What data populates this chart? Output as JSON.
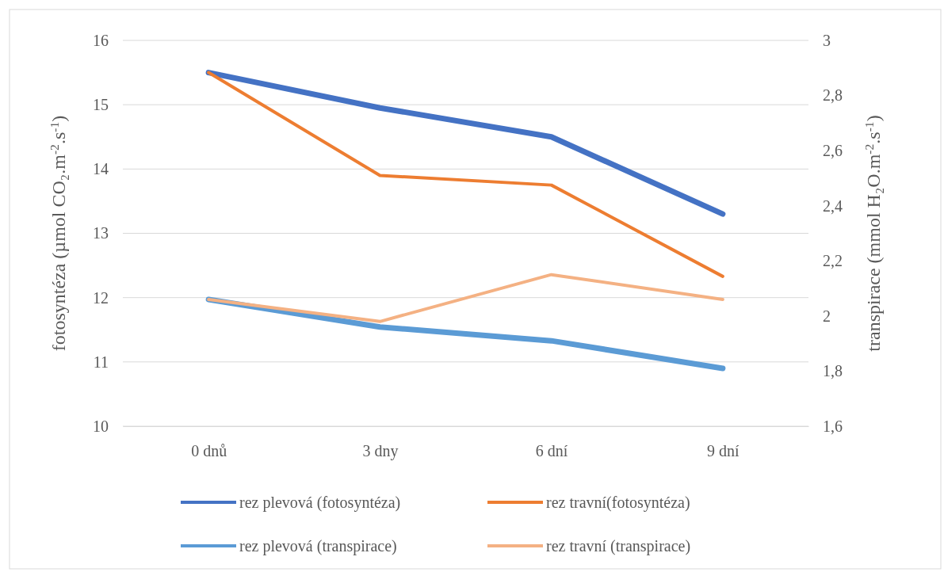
{
  "chart_data": {
    "type": "line",
    "categories": [
      "0 dnů",
      "3 dny",
      "6 dní",
      "9 dní"
    ],
    "ylabel": "fotosyntéza (µmol CO₂.m$^{-2}$.s$^{-1}$)",
    "y2label": "transpirace (mmol H₂O.m$^{-2}$.s$^{-1}$)",
    "ylim": [
      10,
      16
    ],
    "yticks": [
      10,
      11,
      12,
      13,
      14,
      15,
      16
    ],
    "y2lim": [
      1.6,
      3
    ],
    "y2ticks": [
      {
        "value": 1.6,
        "label": "1,6"
      },
      {
        "value": 1.8,
        "label": "1,8"
      },
      2,
      {
        "value": 2.2,
        "label": "2,2"
      },
      {
        "value": 2.4,
        "label": "2,4"
      },
      {
        "value": 2.6,
        "label": "2,6"
      },
      {
        "value": 2.8,
        "label": "2,8"
      },
      3
    ],
    "grid": "y",
    "legend": "bottom",
    "marker": "none",
    "line_style": "solid",
    "series": [
      {
        "name": "rez plevová (fotosyntéza)",
        "color": "#4472c4",
        "values": [
          15.5,
          14.95,
          14.5,
          13.3
        ]
      },
      {
        "name": "rez travní(fotosyntéza)",
        "color": "#ed7d31",
        "values": [
          15.5,
          13.9,
          13.75,
          12.33
        ]
      },
      {
        "name": "rez plevová (transpirace)",
        "color": "#5b9bd5",
        "axis": "y2",
        "values": [
          2.06,
          1.96,
          1.91,
          1.81
        ]
      },
      {
        "name": "rez travní (transpirace)",
        "color": "#f4b183",
        "axis": "y2",
        "values": [
          2.06,
          1.98,
          2.15,
          2.06
        ]
      }
    ]
  }
}
